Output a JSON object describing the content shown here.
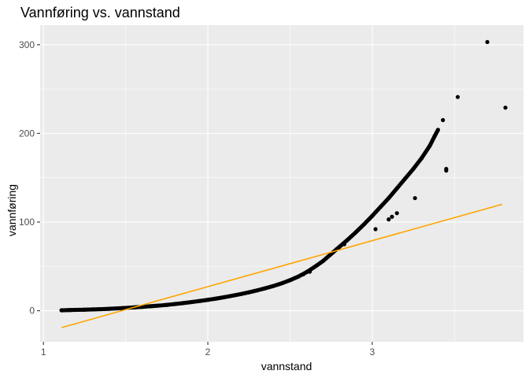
{
  "chart_data": {
    "type": "scatter",
    "title": "Vannføring vs. vannstand",
    "xlabel": "vannstand",
    "ylabel": "vannføring",
    "xlim": [
      0.98,
      3.92
    ],
    "ylim": [
      -35,
      322
    ],
    "x_ticks": [
      1,
      2,
      3
    ],
    "x_tick_labels": [
      "1",
      "2",
      "3"
    ],
    "y_ticks": [
      0,
      100,
      200,
      300
    ],
    "y_tick_labels": [
      "0",
      "100",
      "200",
      "300"
    ],
    "grid": true,
    "point_color": "#000000",
    "fit_line": {
      "type": "linear",
      "color": "#ffa500",
      "x": [
        1.11,
        3.79
      ],
      "y": [
        -19,
        120
      ]
    },
    "series": [
      {
        "values": [
          [
            1.11,
            0.5
          ],
          [
            1.16,
            0.8
          ],
          [
            1.2,
            1.0
          ],
          [
            1.25,
            1.2
          ],
          [
            1.3,
            1.5
          ],
          [
            1.35,
            1.8
          ],
          [
            1.4,
            2.2
          ],
          [
            1.45,
            2.7
          ],
          [
            1.5,
            3.2
          ],
          [
            1.55,
            3.8
          ],
          [
            1.6,
            4.4
          ],
          [
            1.65,
            5.1
          ],
          [
            1.7,
            5.8
          ],
          [
            1.75,
            6.6
          ],
          [
            1.8,
            7.6
          ],
          [
            1.85,
            8.6
          ],
          [
            1.9,
            9.8
          ],
          [
            1.95,
            11
          ],
          [
            2.0,
            12.3
          ],
          [
            2.05,
            13.7
          ],
          [
            2.1,
            15.3
          ],
          [
            2.15,
            17
          ],
          [
            2.2,
            18.8
          ],
          [
            2.25,
            20.8
          ],
          [
            2.3,
            23
          ],
          [
            2.35,
            25.4
          ],
          [
            2.4,
            28
          ],
          [
            2.45,
            31
          ],
          [
            2.5,
            34.5
          ],
          [
            2.55,
            38.5
          ],
          [
            2.6,
            43.5
          ],
          [
            2.65,
            49.5
          ],
          [
            2.7,
            56
          ],
          [
            2.75,
            64
          ],
          [
            2.8,
            72
          ],
          [
            2.85,
            80
          ],
          [
            2.9,
            88.5
          ],
          [
            2.95,
            97.5
          ],
          [
            3.0,
            107
          ],
          [
            3.05,
            117
          ],
          [
            3.1,
            127
          ],
          [
            3.15,
            138
          ],
          [
            3.2,
            149
          ],
          [
            3.25,
            160
          ],
          [
            3.3,
            172
          ],
          [
            3.35,
            186
          ],
          [
            3.38,
            197
          ],
          [
            3.4,
            204
          ],
          [
            2.53,
            37
          ],
          [
            2.58,
            41
          ],
          [
            2.62,
            44
          ],
          [
            2.78,
            69
          ],
          [
            2.83,
            75
          ],
          [
            3.02,
            92
          ],
          [
            3.1,
            103
          ],
          [
            3.12,
            106
          ],
          [
            3.15,
            110
          ],
          [
            3.26,
            127
          ],
          [
            3.43,
            215
          ],
          [
            3.45,
            160
          ],
          [
            3.45,
            158
          ],
          [
            3.52,
            241
          ],
          [
            3.7,
            303
          ],
          [
            3.81,
            229
          ]
        ]
      }
    ]
  }
}
